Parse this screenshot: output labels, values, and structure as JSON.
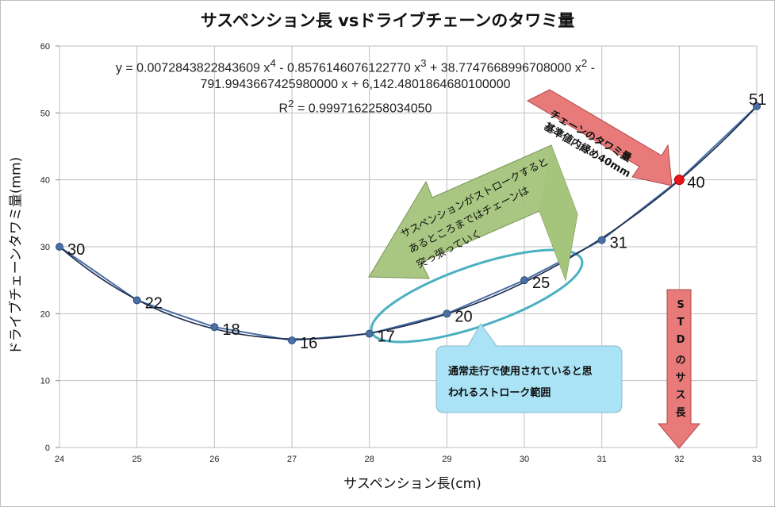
{
  "chart_data": {
    "type": "scatter",
    "title": "サスペンション長 vsドライブチェーンのタワミ量",
    "xlabel": "サスペンション長(cm)",
    "ylabel": "ドライブチェーンタワミ量(mm)",
    "xlim": [
      24,
      33
    ],
    "ylim": [
      0,
      60
    ],
    "xticks": [
      "24",
      "25",
      "26",
      "27",
      "28",
      "29",
      "30",
      "31",
      "32",
      "33"
    ],
    "yticks": [
      "0",
      "10",
      "20",
      "30",
      "40",
      "50",
      "60"
    ],
    "grid": true,
    "points": [
      {
        "x": 24,
        "y": 30,
        "label": "30"
      },
      {
        "x": 25,
        "y": 22,
        "label": "22"
      },
      {
        "x": 26,
        "y": 18,
        "label": "18"
      },
      {
        "x": 27,
        "y": 16,
        "label": "16"
      },
      {
        "x": 28,
        "y": 17,
        "label": "17"
      },
      {
        "x": 29,
        "y": 20,
        "label": "20"
      },
      {
        "x": 30,
        "y": 25,
        "label": "25"
      },
      {
        "x": 31,
        "y": 31,
        "label": "31"
      },
      {
        "x": 32,
        "y": 40,
        "label": "40"
      },
      {
        "x": 33,
        "y": 51,
        "label": "51"
      }
    ],
    "highlight_x": 32,
    "trendline": {
      "type": "polynomial",
      "coefficients": [
        0.0072843822843609,
        -0.857614607612277,
        38.7747668996708,
        -791.994366742598,
        6142.48018646801
      ],
      "equation_line1": "y = 0.0072843822843609 x",
      "sup1": "4",
      "equation_mid1": " - 0.8576146076122770 x",
      "sup2": "3",
      "equation_mid2": " + 38.7747668996708000 x",
      "sup3": "2",
      "equation_end1": " -",
      "equation_line2": "791.9943667425980000 x + 6,142.4801864680100000",
      "r2_prefix": "R",
      "r2_sup": "2",
      "r2_value": " = 0.9997162258034050"
    },
    "colors": {
      "series": "#4a6fa5",
      "highlight": "#e8141b",
      "trendline": "#1a2a4a",
      "grid": "#bfbfbf",
      "red_arrow": "#e87a7a",
      "green_arrow": "#a5c47c",
      "callout": "#a9e3f5",
      "ellipse": "#4bb0c0"
    },
    "annotations": {
      "red_arrow_line1": "チェーンのタワミ量",
      "red_arrow_line2": "基準値内縁め40mm",
      "green_arrow_line1": "サスペンションがストロークすると",
      "green_arrow_line2": "あるところまではチェーンは",
      "green_arrow_line3": "突っ張っていく",
      "callout_line1": "通常走行で使用されていると思",
      "callout_line2": "われるストローク範囲",
      "std_chars": [
        "S",
        "T",
        "D",
        "の",
        "サ",
        "ス",
        "長"
      ]
    }
  }
}
